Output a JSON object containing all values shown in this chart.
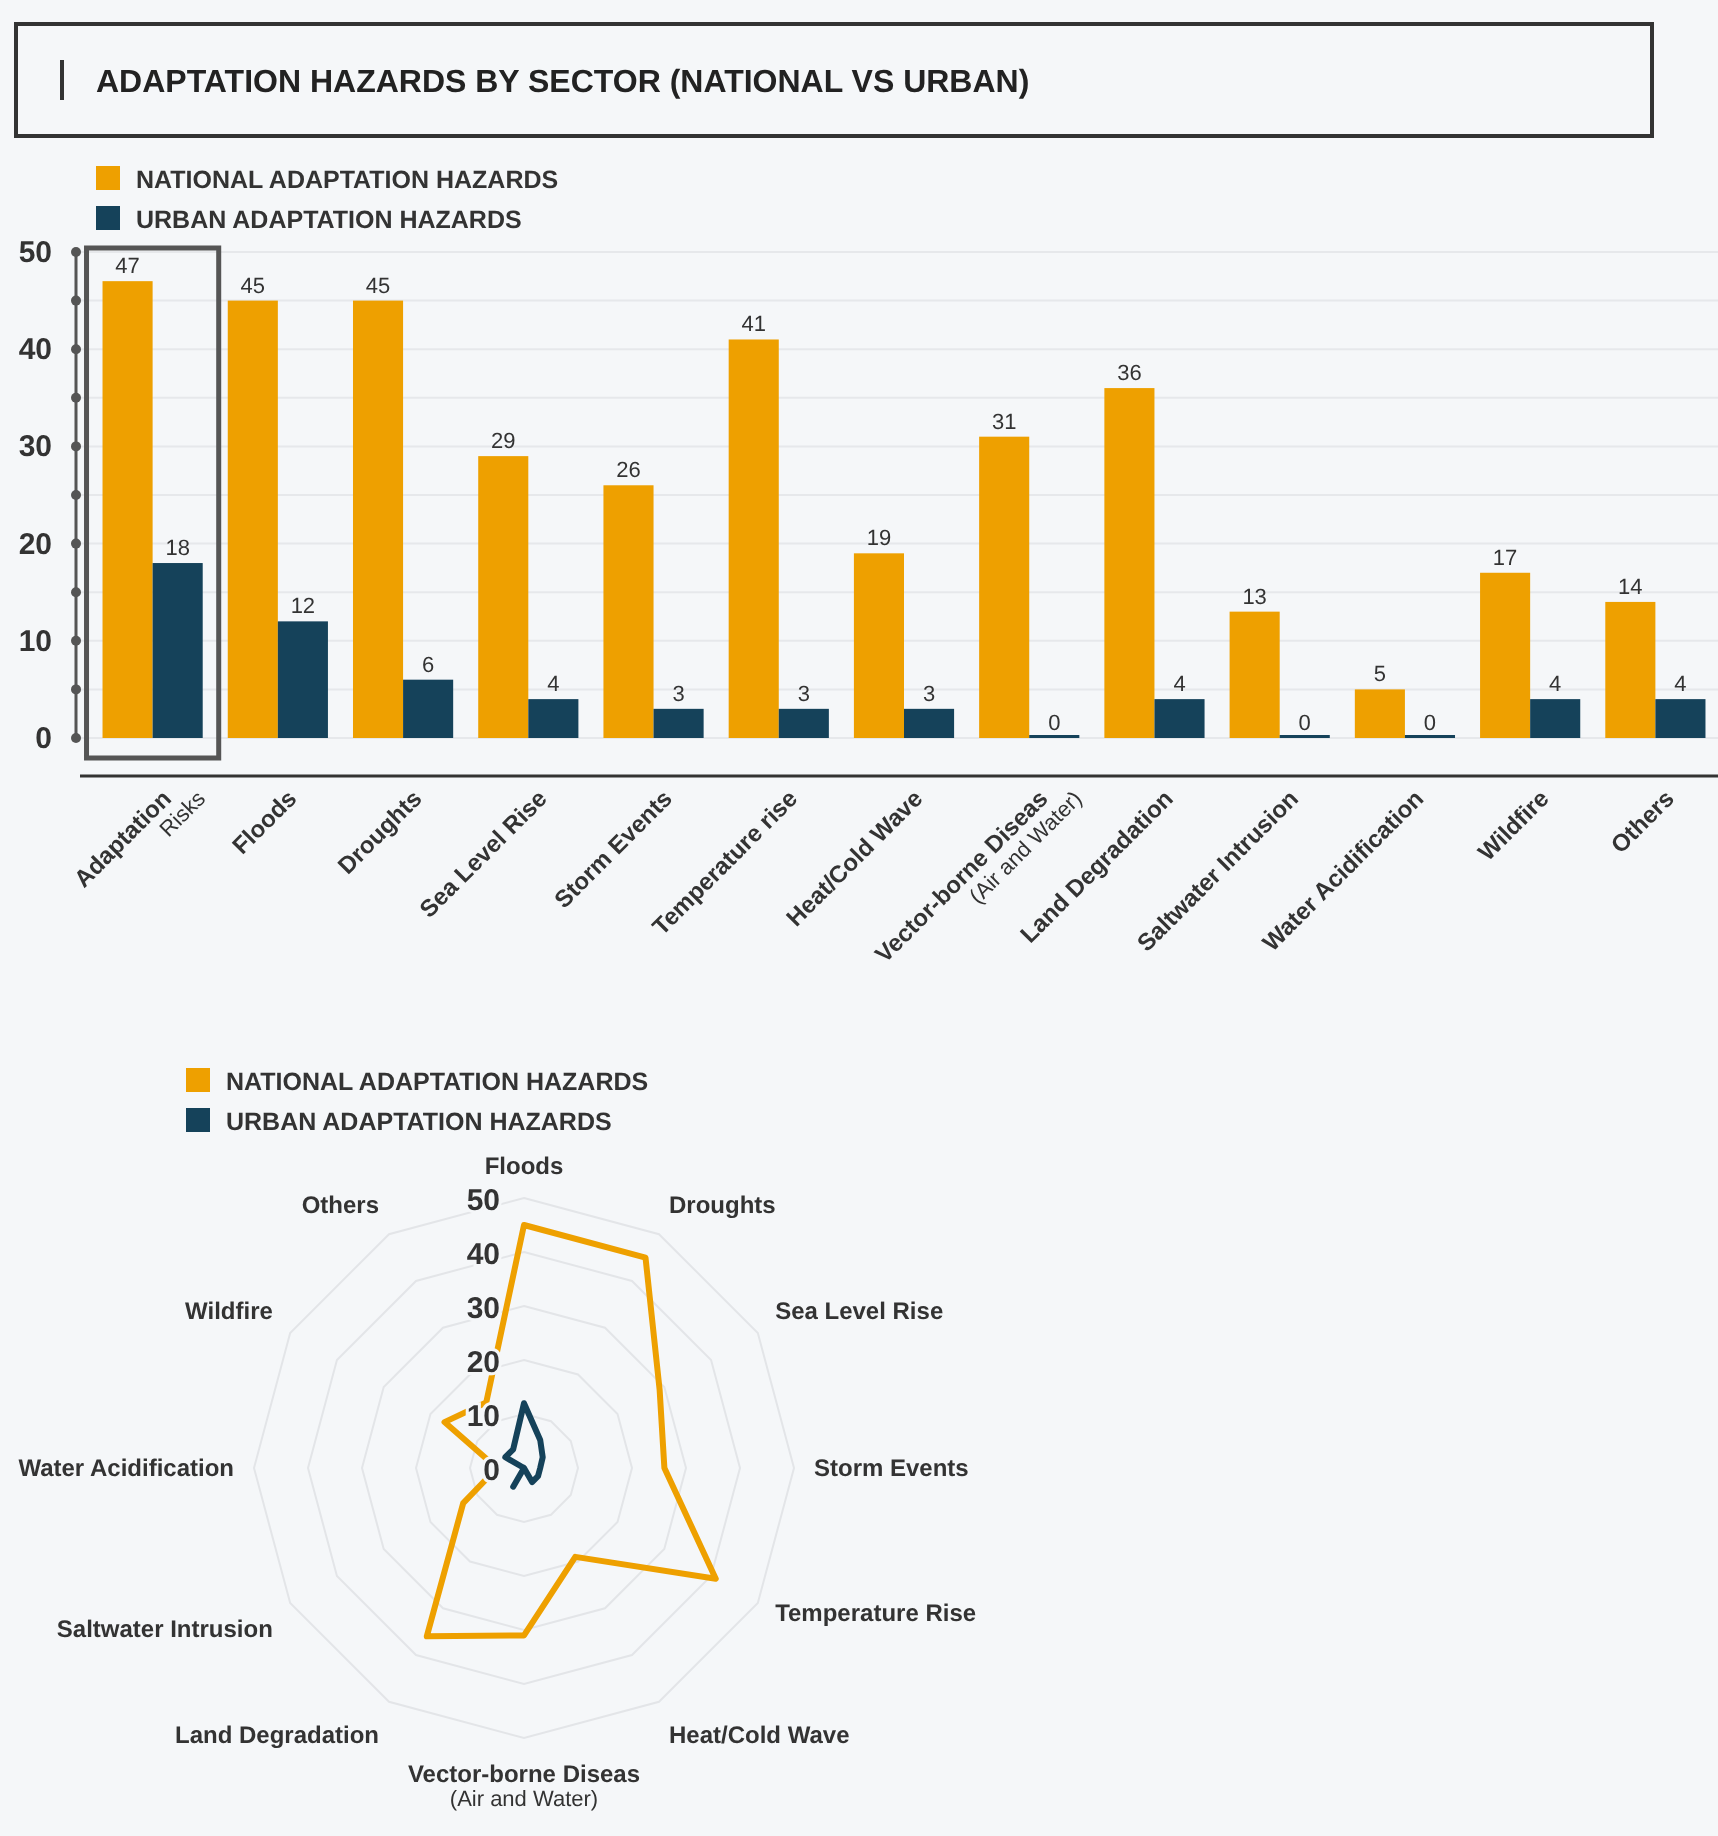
{
  "chart_data": [
    {
      "type": "bar",
      "title": "ADAPTATION HAZARDS BY SECTOR (NATIONAL VS URBAN)",
      "categories": [
        "Adaptation\nRisks",
        "Floods",
        "Droughts",
        "Sea Level Rise",
        "Storm Events",
        "Temperature rise",
        "Heat/Cold Wave",
        "Vector-borne Diseas\n(Air and Water)",
        "Land Degradation",
        "Saltwater Intrusion",
        "Water Acidification",
        "Wildfire",
        "Others"
      ],
      "series": [
        {
          "name": "NATIONAL ADAPTATION HAZARDS",
          "color": "#eea000",
          "values": [
            47,
            45,
            45,
            29,
            26,
            41,
            19,
            31,
            36,
            13,
            5,
            17,
            14
          ]
        },
        {
          "name": "URBAN ADAPTATION HAZARDS",
          "color": "#15425a",
          "values": [
            18,
            12,
            6,
            4,
            3,
            3,
            3,
            0,
            4,
            0,
            0,
            4,
            4
          ]
        }
      ],
      "ylim": [
        0,
        50
      ],
      "yticks": [
        0,
        {
          "value": 5,
          "label": null
        },
        10,
        {
          "value": 15,
          "label": null
        },
        20,
        {
          "value": 25,
          "label": null
        },
        30,
        {
          "value": 35,
          "label": null
        },
        40,
        {
          "value": 45,
          "label": null
        },
        50
      ],
      "grid": "y",
      "legend": "top left",
      "data_labels": true
    },
    {
      "type": "radar",
      "categories": [
        "Floods",
        "Droughts",
        "Sea Level Rise",
        "Storm Events",
        "Temperature Rise",
        "Heat/Cold Wave",
        "Vector-borne Diseas\n(Air and Water)",
        "Land Degradation",
        "Saltwater Intrusion",
        "Water Acidification",
        "Wildfire",
        "Others"
      ],
      "series": [
        {
          "name": "NATIONAL ADAPTATION HAZARDS",
          "color": "#eea000",
          "values": [
            45,
            45,
            29,
            26,
            41,
            19,
            31,
            36,
            13,
            5,
            17,
            14
          ]
        },
        {
          "name": "URBAN ADAPTATION HAZARDS",
          "color": "#15425a",
          "values": [
            12,
            6,
            4,
            3,
            3,
            3,
            0,
            4,
            0,
            0,
            4,
            4
          ]
        }
      ],
      "ylim": [
        0,
        50
      ],
      "yticks": [
        0,
        10,
        20,
        30,
        40,
        50
      ],
      "grid": true,
      "legend": "top left"
    }
  ]
}
